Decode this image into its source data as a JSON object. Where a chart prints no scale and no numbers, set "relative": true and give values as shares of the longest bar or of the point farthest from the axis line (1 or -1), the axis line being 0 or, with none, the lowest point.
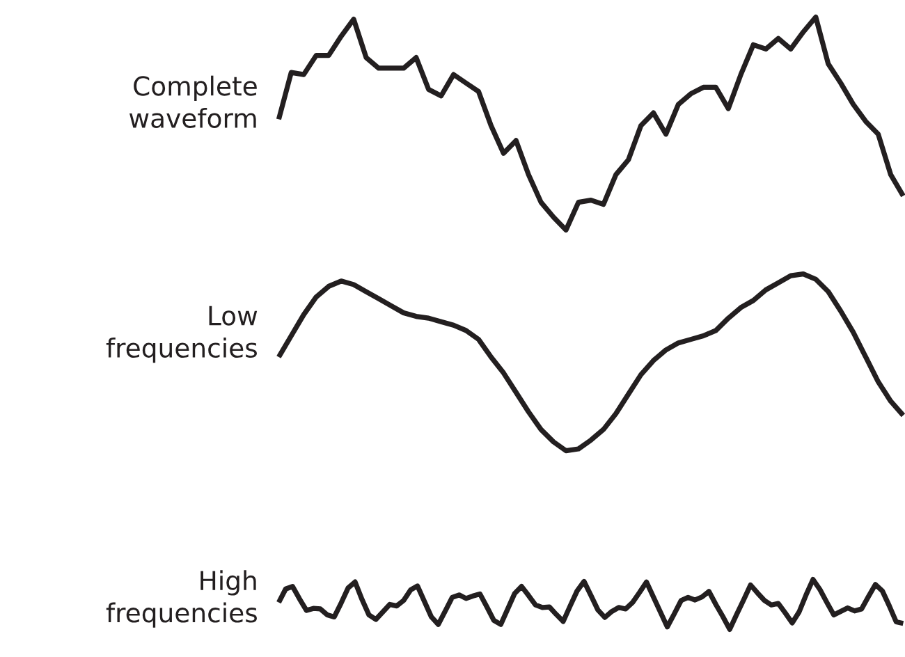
{
  "chart_data": [
    {
      "type": "line",
      "relative": true,
      "ylabel": "Complete\nwaveform",
      "categories": [
        null,
        null,
        null,
        null,
        null,
        null,
        null,
        null,
        null,
        null,
        null,
        null,
        null,
        null,
        null,
        null,
        null,
        null,
        null,
        null,
        null,
        null,
        null,
        null,
        null,
        null,
        null,
        null,
        null,
        null,
        null,
        null,
        null,
        null,
        null,
        null,
        null,
        null,
        null,
        null,
        null,
        null,
        null,
        null,
        null,
        null,
        null,
        null,
        null,
        null,
        null
      ],
      "series": [
        {
          "color": "#231f20",
          "values": [
            0.52,
            0.74,
            0.73,
            0.82,
            0.82,
            0.91,
            0.99,
            0.81,
            0.76,
            0.76,
            0.76,
            0.81,
            0.66,
            0.63,
            0.73,
            0.69,
            0.65,
            0.49,
            0.36,
            0.42,
            0.26,
            0.13,
            0.06,
            0,
            0.13,
            0.14,
            0.12,
            0.26,
            0.33,
            0.49,
            0.55,
            0.45,
            0.59,
            0.64,
            0.67,
            0.67,
            0.57,
            0.73,
            0.87,
            0.85,
            0.9,
            0.85,
            0.93,
            1,
            0.78,
            0.69,
            0.59,
            0.51,
            0.45,
            0.26,
            0.16
          ]
        }
      ]
    },
    {
      "type": "line",
      "relative": true,
      "ylabel": "Low\nfrequencies",
      "categories": [
        null,
        null,
        null,
        null,
        null,
        null,
        null,
        null,
        null,
        null,
        null,
        null,
        null,
        null,
        null,
        null,
        null,
        null,
        null,
        null,
        null,
        null,
        null,
        null,
        null,
        null,
        null,
        null,
        null,
        null,
        null,
        null,
        null,
        null,
        null,
        null,
        null,
        null,
        null,
        null,
        null,
        null,
        null,
        null,
        null,
        null,
        null,
        null,
        null,
        null,
        null
      ],
      "series": [
        {
          "color": "#231f20",
          "values": [
            0.53,
            0.65,
            0.77,
            0.87,
            0.93,
            0.96,
            0.94,
            0.9,
            0.86,
            0.82,
            0.78,
            0.76,
            0.75,
            0.73,
            0.71,
            0.68,
            0.63,
            0.53,
            0.44,
            0.33,
            0.22,
            0.12,
            0.05,
            0,
            0.01,
            0.06,
            0.12,
            0.21,
            0.32,
            0.43,
            0.51,
            0.57,
            0.61,
            0.63,
            0.65,
            0.68,
            0.75,
            0.81,
            0.85,
            0.91,
            0.95,
            0.99,
            1,
            0.97,
            0.9,
            0.79,
            0.67,
            0.53,
            0.39,
            0.28,
            0.2
          ]
        }
      ]
    },
    {
      "type": "line",
      "relative": true,
      "ylabel": "High\nfrequencies",
      "categories": [
        null,
        null,
        null,
        null,
        null,
        null,
        null,
        null,
        null,
        null,
        null,
        null,
        null,
        null,
        null,
        null,
        null,
        null,
        null,
        null,
        null,
        null,
        null,
        null,
        null,
        null,
        null,
        null,
        null,
        null,
        null,
        null,
        null,
        null,
        null,
        null,
        null,
        null,
        null,
        null,
        null,
        null,
        null,
        null,
        null,
        null,
        null,
        null,
        null,
        null,
        null,
        null,
        null,
        null,
        null,
        null,
        null,
        null,
        null,
        null,
        null,
        null,
        null,
        null,
        null,
        null,
        null,
        null,
        null,
        null,
        null,
        null,
        null,
        null,
        null,
        null,
        null,
        null,
        null,
        null,
        null,
        null,
        null,
        null,
        null,
        null,
        null,
        null,
        null,
        null,
        null
      ],
      "series": [
        {
          "color": "#231f20",
          "values": [
            0.54,
            0.81,
            0.86,
            0.61,
            0.38,
            0.42,
            0.41,
            0.29,
            0.25,
            0.53,
            0.83,
            0.95,
            0.6,
            0.29,
            0.2,
            0.35,
            0.5,
            0.47,
            0.58,
            0.79,
            0.87,
            0.56,
            0.25,
            0.1,
            0.37,
            0.64,
            0.69,
            0.62,
            0.67,
            0.71,
            0.45,
            0.18,
            0.1,
            0.41,
            0.72,
            0.86,
            0.68,
            0.49,
            0.44,
            0.45,
            0.3,
            0.16,
            0.47,
            0.77,
            0.96,
            0.68,
            0.39,
            0.24,
            0.36,
            0.44,
            0.41,
            0.54,
            0.74,
            0.95,
            0.65,
            0.35,
            0.05,
            0.31,
            0.58,
            0.64,
            0.59,
            0.65,
            0.76,
            0.5,
            0.26,
            0,
            0.3,
            0.59,
            0.89,
            0.73,
            0.58,
            0.49,
            0.52,
            0.33,
            0.13,
            0.35,
            0.69,
            1,
            0.8,
            0.54,
            0.29,
            0.36,
            0.43,
            0.37,
            0.41,
            0.66,
            0.9,
            0.77,
            0.47,
            0.15,
            0.12
          ]
        }
      ]
    }
  ]
}
